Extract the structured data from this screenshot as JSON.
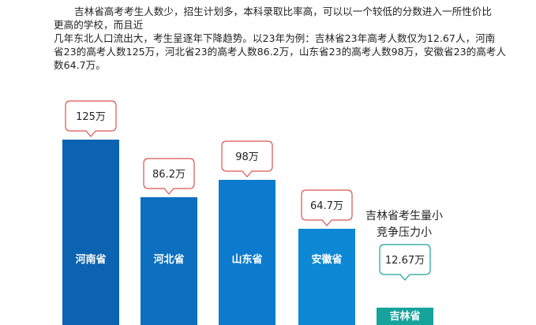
{
  "intro": {
    "lines": [
      "吉林省高考考生人数少，招生计划多，本科录取比率高，可以以一个较低的分数进入一所性价比",
      "更高的学校，而且近",
      "几年东北人口流出大，考生呈逐年下降趋势。以23年为例：吉林省23年高考人数仅为12.67人，河南",
      "省23的高考人数125万，河北省23的高考人数86.2万，山东省23的高考人数98万，安徽省23的高考人",
      "数64.7万。"
    ]
  },
  "note": {
    "line1": "吉林省考生量小",
    "line2": "竞争压力小"
  },
  "chart_data": {
    "type": "bar",
    "title": "",
    "xlabel": "",
    "ylabel": "",
    "unit": "万",
    "categories": [
      "河南省",
      "河北省",
      "山东省",
      "安徽省",
      "吉林省"
    ],
    "values": [
      125,
      86.2,
      98,
      64.7,
      12.67
    ],
    "value_labels": [
      "125万",
      "86.2万",
      "98万",
      "64.7万",
      "12.67万"
    ],
    "colors": [
      "#0b63b1",
      "#0d6fc0",
      "#0c7bcd",
      "#0c88d4",
      "#16a39b"
    ],
    "callout_border": {
      "default": "#d9534f",
      "highlight": "#16a39b"
    },
    "grid": false,
    "legend": "none"
  }
}
